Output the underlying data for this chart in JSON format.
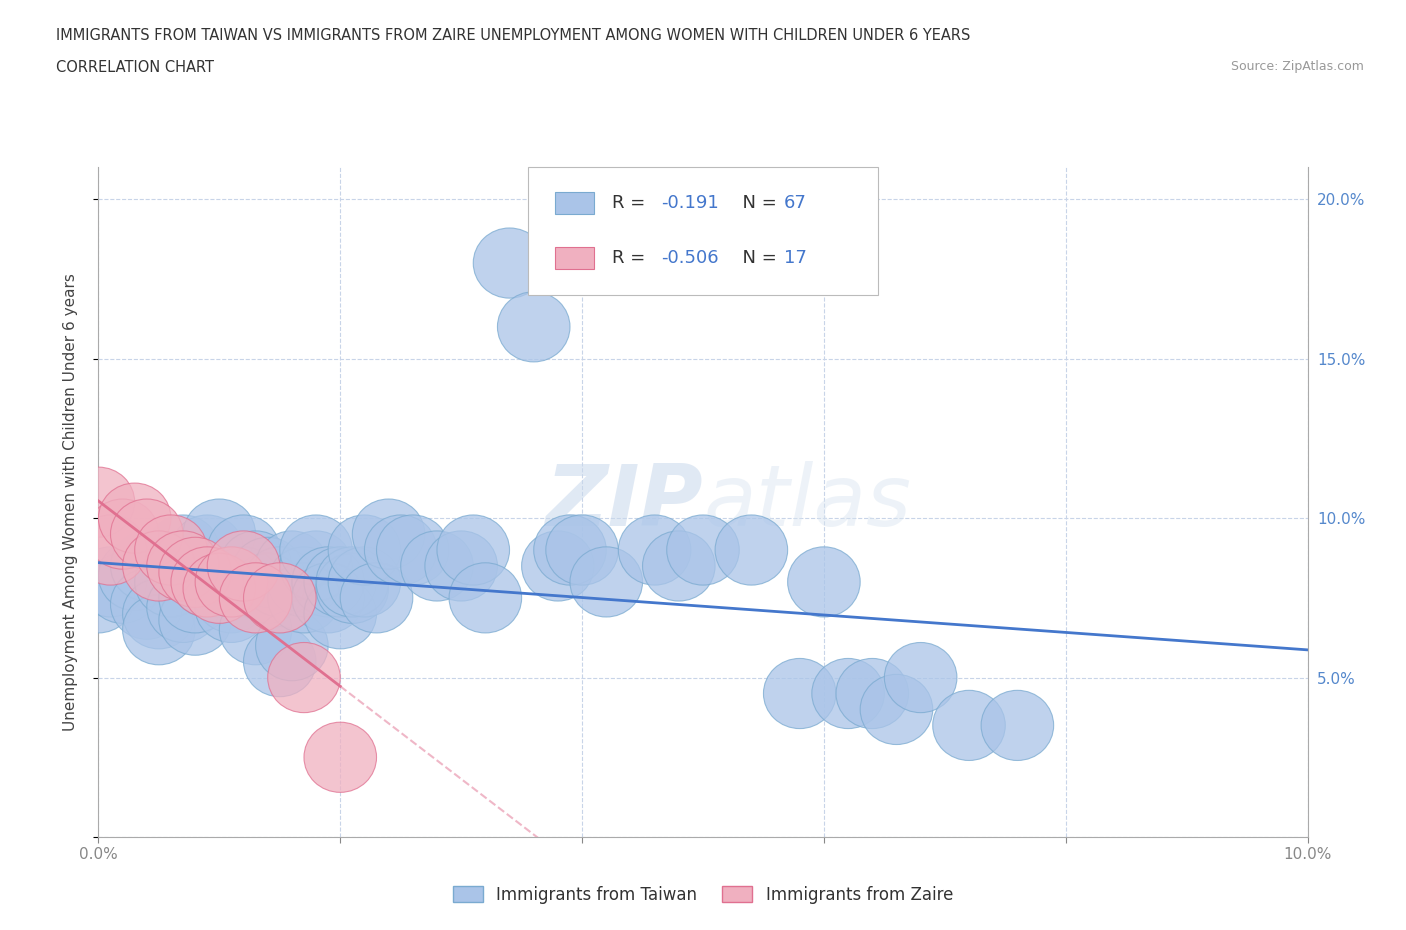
{
  "title": "IMMIGRANTS FROM TAIWAN VS IMMIGRANTS FROM ZAIRE UNEMPLOYMENT AMONG WOMEN WITH CHILDREN UNDER 6 YEARS",
  "subtitle": "CORRELATION CHART",
  "source": "Source: ZipAtlas.com",
  "ylabel": "Unemployment Among Women with Children Under 6 years",
  "legend_labels": [
    "Immigrants from Taiwan",
    "Immigrants from Zaire"
  ],
  "taiwan_color": "#aac4e8",
  "zaire_color": "#f0b0c0",
  "taiwan_edge_color": "#7aaad0",
  "zaire_edge_color": "#e07090",
  "taiwan_line_color": "#4477cc",
  "zaire_line_color": "#e07090",
  "taiwan_R": -0.191,
  "taiwan_N": 67,
  "zaire_R": -0.506,
  "zaire_N": 17,
  "xlim": [
    0,
    0.1
  ],
  "ylim": [
    0,
    0.21
  ],
  "xticks": [
    0.0,
    0.02,
    0.04,
    0.06,
    0.08,
    0.1
  ],
  "yticks": [
    0.0,
    0.05,
    0.1,
    0.15,
    0.2
  ],
  "xticklabels": [
    "0.0%",
    "",
    "",
    "",
    "",
    "10.0%"
  ],
  "yticklabels_right": [
    "",
    "5.0%",
    "10.0%",
    "15.0%",
    "20.0%"
  ],
  "background_color": "#ffffff",
  "grid_color": "#c8d4e8",
  "watermark_zip": "ZIP",
  "watermark_atlas": "atlas",
  "taiwan_scatter": [
    [
      0.0,
      0.075
    ],
    [
      0.001,
      0.08
    ],
    [
      0.002,
      0.078
    ],
    [
      0.003,
      0.082
    ],
    [
      0.004,
      0.085
    ],
    [
      0.004,
      0.073
    ],
    [
      0.005,
      0.07
    ],
    [
      0.005,
      0.065
    ],
    [
      0.006,
      0.08
    ],
    [
      0.007,
      0.072
    ],
    [
      0.007,
      0.09
    ],
    [
      0.008,
      0.068
    ],
    [
      0.008,
      0.075
    ],
    [
      0.009,
      0.09
    ],
    [
      0.009,
      0.08
    ],
    [
      0.01,
      0.095
    ],
    [
      0.01,
      0.08
    ],
    [
      0.011,
      0.075
    ],
    [
      0.011,
      0.072
    ],
    [
      0.012,
      0.09
    ],
    [
      0.012,
      0.08
    ],
    [
      0.013,
      0.085
    ],
    [
      0.013,
      0.065
    ],
    [
      0.014,
      0.078
    ],
    [
      0.014,
      0.083
    ],
    [
      0.015,
      0.08
    ],
    [
      0.015,
      0.055
    ],
    [
      0.016,
      0.06
    ],
    [
      0.016,
      0.085
    ],
    [
      0.017,
      0.08
    ],
    [
      0.017,
      0.075
    ],
    [
      0.018,
      0.085
    ],
    [
      0.018,
      0.09
    ],
    [
      0.019,
      0.08
    ],
    [
      0.019,
      0.075
    ],
    [
      0.02,
      0.07
    ],
    [
      0.02,
      0.08
    ],
    [
      0.021,
      0.078
    ],
    [
      0.021,
      0.08
    ],
    [
      0.022,
      0.08
    ],
    [
      0.022,
      0.09
    ],
    [
      0.023,
      0.075
    ],
    [
      0.024,
      0.095
    ],
    [
      0.025,
      0.09
    ],
    [
      0.026,
      0.09
    ],
    [
      0.028,
      0.085
    ],
    [
      0.03,
      0.085
    ],
    [
      0.031,
      0.09
    ],
    [
      0.032,
      0.075
    ],
    [
      0.034,
      0.18
    ],
    [
      0.036,
      0.16
    ],
    [
      0.038,
      0.085
    ],
    [
      0.039,
      0.09
    ],
    [
      0.04,
      0.09
    ],
    [
      0.042,
      0.08
    ],
    [
      0.046,
      0.09
    ],
    [
      0.048,
      0.085
    ],
    [
      0.05,
      0.09
    ],
    [
      0.054,
      0.09
    ],
    [
      0.058,
      0.045
    ],
    [
      0.06,
      0.08
    ],
    [
      0.062,
      0.045
    ],
    [
      0.064,
      0.045
    ],
    [
      0.066,
      0.04
    ],
    [
      0.068,
      0.05
    ],
    [
      0.072,
      0.035
    ],
    [
      0.076,
      0.035
    ]
  ],
  "zaire_scatter": [
    [
      0.0,
      0.105
    ],
    [
      0.001,
      0.09
    ],
    [
      0.002,
      0.095
    ],
    [
      0.003,
      0.1
    ],
    [
      0.004,
      0.095
    ],
    [
      0.005,
      0.085
    ],
    [
      0.006,
      0.09
    ],
    [
      0.007,
      0.085
    ],
    [
      0.008,
      0.083
    ],
    [
      0.009,
      0.08
    ],
    [
      0.01,
      0.078
    ],
    [
      0.011,
      0.08
    ],
    [
      0.012,
      0.085
    ],
    [
      0.013,
      0.075
    ],
    [
      0.015,
      0.075
    ],
    [
      0.017,
      0.05
    ],
    [
      0.02,
      0.025
    ]
  ]
}
